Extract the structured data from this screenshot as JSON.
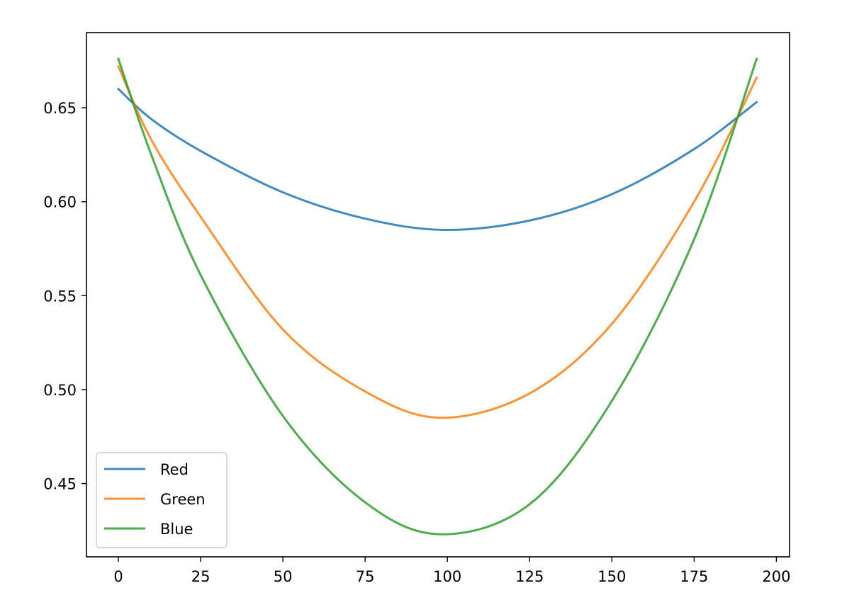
{
  "chart_data": {
    "type": "line",
    "title": "",
    "xlabel": "",
    "ylabel": "",
    "xlim": [
      -9.7,
      204
    ],
    "ylim": [
      0.411,
      0.69
    ],
    "x_ticks": [
      0,
      25,
      50,
      75,
      100,
      125,
      150,
      175,
      200
    ],
    "y_ticks": [
      0.45,
      0.5,
      0.55,
      0.6,
      0.65
    ],
    "grid": false,
    "legend_position": "lower-left",
    "series": [
      {
        "name": "Red",
        "color": "#1f77b4",
        "x": [
          0,
          10,
          25,
          50,
          75,
          99,
          125,
          150,
          175,
          194
        ],
        "y": [
          0.66,
          0.644,
          0.627,
          0.605,
          0.591,
          0.585,
          0.59,
          0.604,
          0.628,
          0.653
        ]
      },
      {
        "name": "Green",
        "color": "#ff7f0e",
        "x": [
          0,
          10,
          25,
          50,
          75,
          98,
          125,
          150,
          175,
          194
        ],
        "y": [
          0.672,
          0.633,
          0.592,
          0.532,
          0.499,
          0.485,
          0.498,
          0.535,
          0.6,
          0.666
        ]
      },
      {
        "name": "Blue",
        "color": "#2ca02c",
        "x": [
          0,
          10,
          25,
          50,
          75,
          98,
          125,
          150,
          175,
          194
        ],
        "y": [
          0.676,
          0.625,
          0.561,
          0.486,
          0.44,
          0.423,
          0.439,
          0.494,
          0.58,
          0.676
        ]
      }
    ]
  }
}
